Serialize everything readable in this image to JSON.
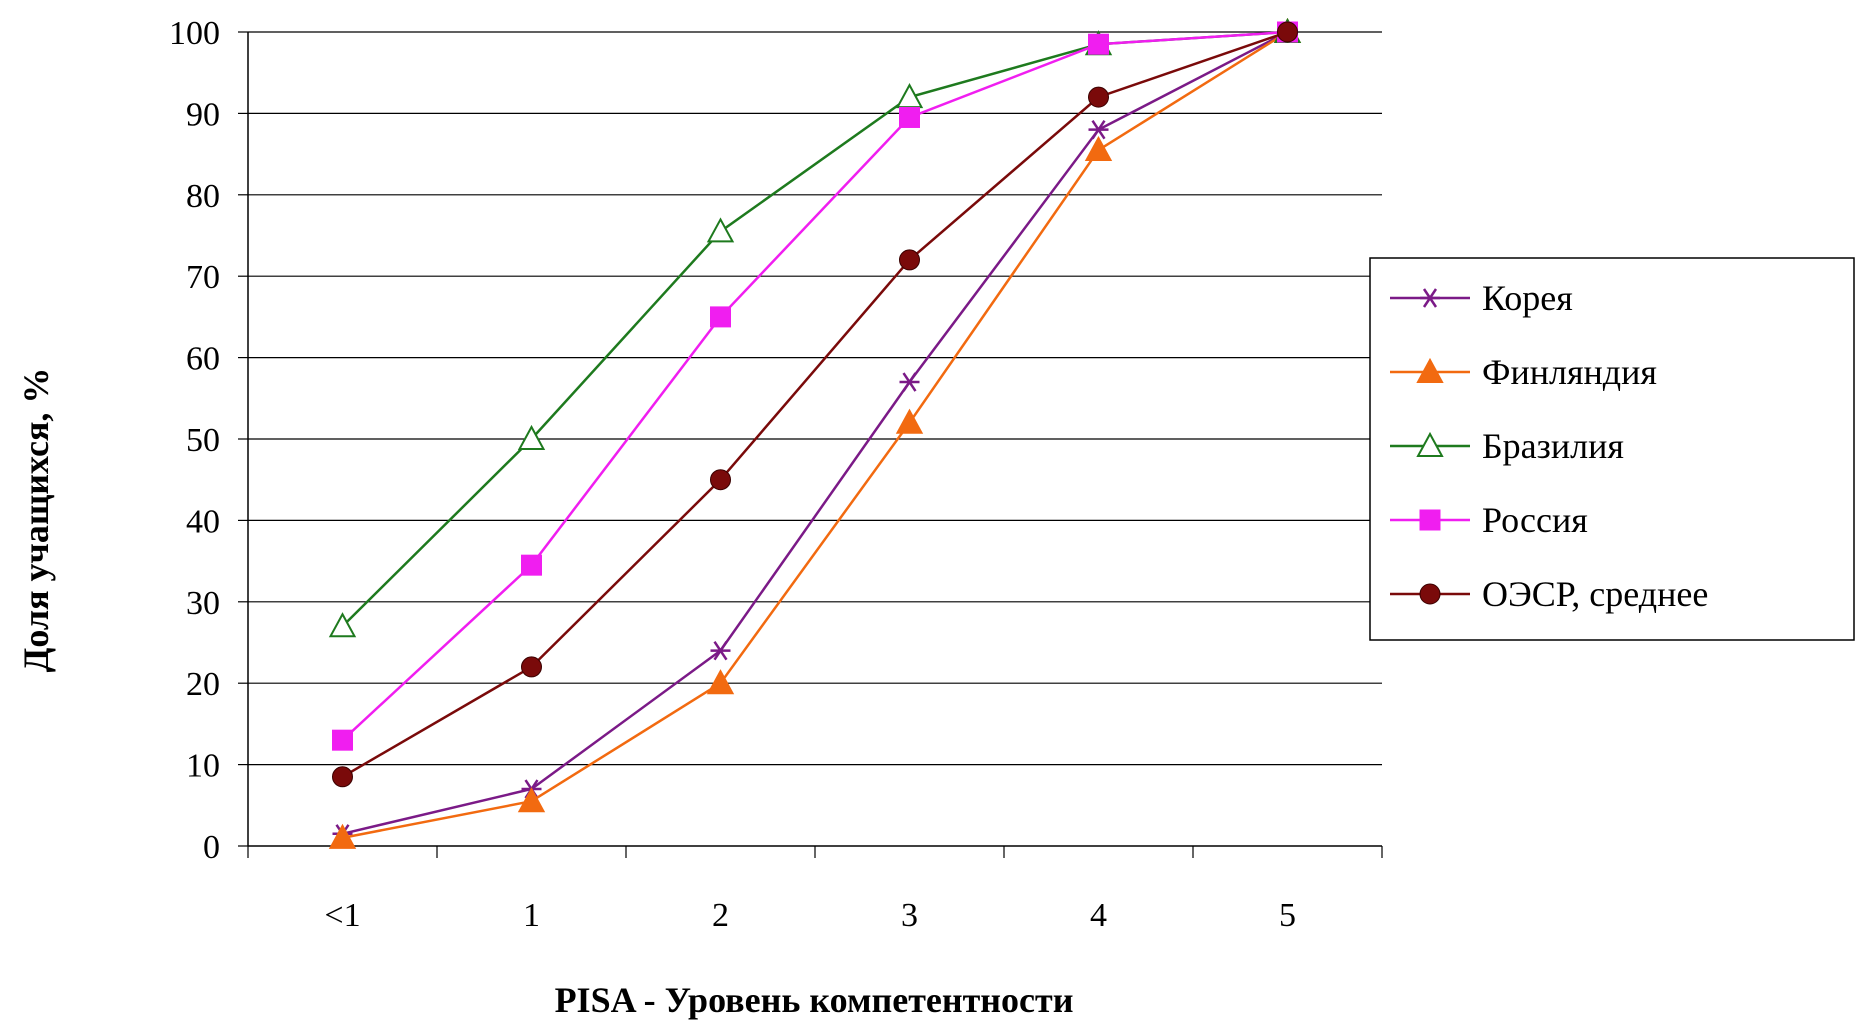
{
  "chart_data": {
    "type": "line",
    "xlabel": "PISA - Уровень компетентности",
    "ylabel": "Доля учащихся, %",
    "categories": [
      "<1",
      "1",
      "2",
      "3",
      "4",
      "5"
    ],
    "y_ticks": [
      "0",
      "10",
      "20",
      "30",
      "40",
      "50",
      "60",
      "70",
      "80",
      "90",
      "100"
    ],
    "ylim": [
      0,
      100
    ],
    "grid": "horizontal",
    "legend_position": "right",
    "series": [
      {
        "name": "Корея",
        "marker": "star",
        "color": "#7B1A87",
        "values": [
          1.5,
          7,
          24,
          57,
          88,
          100
        ]
      },
      {
        "name": "Финляндия",
        "marker": "triangle-filled",
        "color": "#F26A10",
        "values": [
          1,
          5.5,
          20,
          52,
          85.5,
          100
        ]
      },
      {
        "name": "Бразилия",
        "marker": "triangle-open",
        "color": "#1E7A1E",
        "values": [
          27,
          50,
          75.5,
          92,
          98.5,
          100
        ]
      },
      {
        "name": "Россия",
        "marker": "square",
        "color": "#F01EF0",
        "values": [
          13,
          34.5,
          65,
          89.5,
          98.5,
          100
        ]
      },
      {
        "name": "ОЭСР, среднее",
        "marker": "circle",
        "color": "#7A0A0A",
        "values": [
          8.5,
          22,
          45,
          72,
          92,
          100
        ]
      }
    ]
  }
}
